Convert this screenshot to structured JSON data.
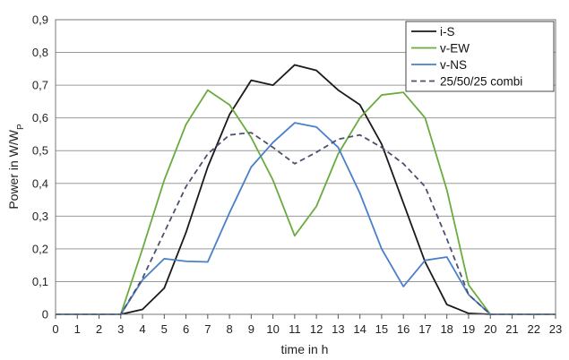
{
  "chart_data": {
    "type": "line",
    "xlabel": "time in h",
    "ylabel": "Power in W/W",
    "ylabel_sub": "P",
    "x": [
      0,
      1,
      2,
      3,
      4,
      5,
      6,
      7,
      8,
      9,
      10,
      11,
      12,
      13,
      14,
      15,
      16,
      17,
      18,
      19,
      20,
      21,
      22,
      23
    ],
    "x_ticks": [
      "0",
      "1",
      "2",
      "3",
      "4",
      "5",
      "6",
      "7",
      "8",
      "9",
      "10",
      "11",
      "12",
      "13",
      "14",
      "15",
      "16",
      "17",
      "18",
      "19",
      "20",
      "21",
      "22",
      "23"
    ],
    "xlim": [
      0,
      23
    ],
    "ylim": [
      0,
      0.9
    ],
    "y_ticks": [
      "0",
      "0,1",
      "0,2",
      "0,3",
      "0,4",
      "0,5",
      "0,6",
      "0,7",
      "0,8",
      "0,9"
    ],
    "y_tick_values": [
      0,
      0.1,
      0.2,
      0.3,
      0.4,
      0.5,
      0.6,
      0.7,
      0.8,
      0.9
    ],
    "grid": "horizontal",
    "legend_position": "top-right",
    "series": [
      {
        "name": "i-S",
        "color": "#1a1a1a",
        "style": "solid",
        "values": [
          0,
          0,
          0,
          0,
          0.015,
          0.08,
          0.25,
          0.45,
          0.61,
          0.715,
          0.7,
          0.762,
          0.745,
          0.685,
          0.64,
          0.52,
          0.34,
          0.16,
          0.03,
          0.003,
          0,
          0,
          0,
          0
        ]
      },
      {
        "name": "v-EW",
        "color": "#6aab3e",
        "style": "solid",
        "values": [
          0,
          0,
          0,
          0,
          0.2,
          0.41,
          0.58,
          0.685,
          0.64,
          0.54,
          0.41,
          0.24,
          0.33,
          0.49,
          0.6,
          0.67,
          0.678,
          0.6,
          0.38,
          0.09,
          0,
          0,
          0,
          0
        ]
      },
      {
        "name": "v-NS",
        "color": "#4a7fc9",
        "style": "solid",
        "values": [
          0,
          0,
          0,
          0,
          0.105,
          0.17,
          0.162,
          0.16,
          0.31,
          0.45,
          0.525,
          0.585,
          0.572,
          0.51,
          0.37,
          0.2,
          0.085,
          0.165,
          0.175,
          0.06,
          0,
          0,
          0,
          0
        ]
      },
      {
        "name": "25/50/25 combi",
        "color": "#4a5270",
        "style": "dashed",
        "values": [
          0,
          0,
          0,
          0,
          0.11,
          0.25,
          0.39,
          0.49,
          0.548,
          0.555,
          0.51,
          0.46,
          0.495,
          0.535,
          0.548,
          0.51,
          0.46,
          0.39,
          0.23,
          0.06,
          0,
          0,
          0,
          0
        ]
      }
    ]
  }
}
